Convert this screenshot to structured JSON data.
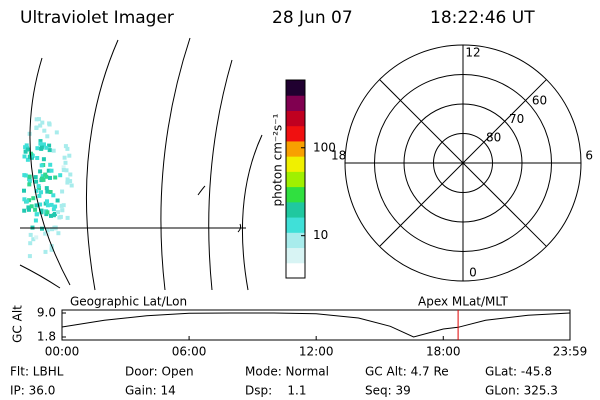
{
  "header": {
    "title": "Ultraviolet Imager",
    "date": "28 Jun 07",
    "time": "18:22:46 UT"
  },
  "colorbar": {
    "label": "photon cm⁻²s⁻¹",
    "scale": "log",
    "lim": [
      3.3,
      590
    ],
    "ticks": [
      10,
      100
    ],
    "colors": [
      "#ffffff",
      "#d8f4f4",
      "#a8ecec",
      "#40e0d8",
      "#20c8a0",
      "#30e040",
      "#a0f000",
      "#f0f000",
      "#f8a000",
      "#f01010",
      "#c00020",
      "#800050",
      "#200030"
    ]
  },
  "polar": {
    "rlim": [
      90,
      50
    ],
    "rings": [
      60,
      70,
      80
    ],
    "mlt_labels": [
      {
        "value": 12,
        "label": "12"
      },
      {
        "value": 18,
        "label": "18"
      },
      {
        "value": 6,
        "label": "6"
      },
      {
        "value": 0,
        "label": "0"
      }
    ]
  },
  "timeline": {
    "left_label": "Geographic Lat/Lon",
    "right_label": "Apex MLat/MLT",
    "ylabel": "GC Alt",
    "xlim": [
      0,
      23.983
    ],
    "ylim": [
      1.8,
      9.0
    ],
    "yticks": [
      {
        "value": 9.0,
        "label": "9.0"
      },
      {
        "value": 1.8,
        "label": "1.8"
      }
    ],
    "xticks": [
      {
        "value": 0,
        "label": "00:00"
      },
      {
        "value": 6,
        "label": "06:00"
      },
      {
        "value": 12,
        "label": "12:00"
      },
      {
        "value": 18,
        "label": "18:00"
      },
      {
        "value": 23.983,
        "label": "23:59"
      }
    ],
    "x": [
      0,
      2,
      4,
      6,
      8,
      10,
      12,
      14,
      15.5,
      16.6,
      18,
      18.7,
      20,
      22,
      23.983
    ],
    "values": [
      4.8,
      6.8,
      8.2,
      8.9,
      9.0,
      9.0,
      8.8,
      7.5,
      5.0,
      1.8,
      4.2,
      4.7,
      6.8,
      8.3,
      9.0
    ],
    "current_time": 18.7
  },
  "info": {
    "rows": [
      [
        "Flt: LBHL",
        "Door: Open",
        "Mode: Normal",
        "GC Alt: 4.7 Re",
        "GLat: -45.8"
      ],
      [
        "IP: 36.0",
        "Gain: 14",
        "Dsp:    1.1",
        "Seq: 39",
        "GLon: 325.3"
      ]
    ]
  }
}
